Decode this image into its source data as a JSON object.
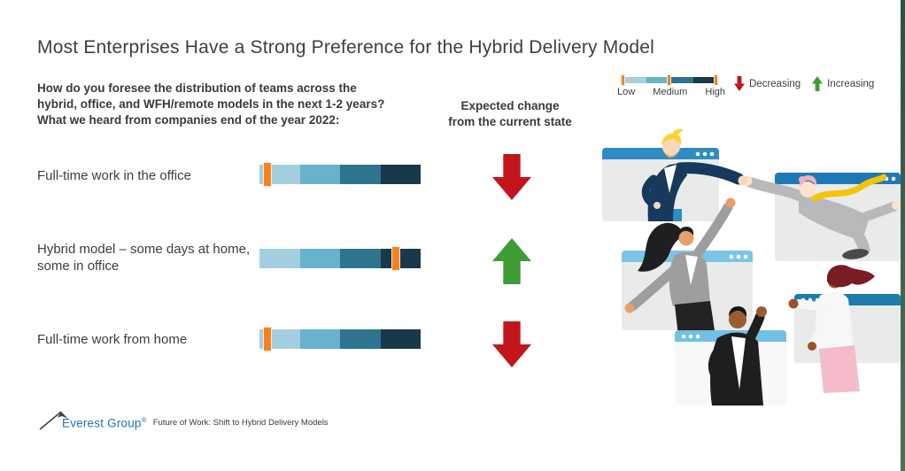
{
  "title": "Most Enterprises Have a Strong Preference for the Hybrid Delivery Model",
  "question": "How do you foresee the distribution of teams across the\nhybrid, office, and WFH/remote models in the next 1-2 years?\nWhat we heard from companies end of the year 2022:",
  "expected_change_header": "Expected change\nfrom the current state",
  "legend": {
    "scale_labels": [
      "Low",
      "Medium",
      "High"
    ],
    "decreasing_label": "Decreasing",
    "increasing_label": "Increasing"
  },
  "rows": [
    {
      "label": "Full-time work in the office",
      "marker_position_pct": 2,
      "preference_level": "Low",
      "expected_change": "Decreasing"
    },
    {
      "label": "Hybrid model – some days at home, some in office",
      "marker_position_pct": 82,
      "preference_level": "High",
      "expected_change": "Increasing"
    },
    {
      "label": "Full-time work from home",
      "marker_position_pct": 2,
      "preference_level": "Low",
      "expected_change": "Decreasing"
    }
  ],
  "footer": {
    "brand": "Everest Group",
    "registered_mark": "®",
    "caption": "Future of Work: Shift to Hybrid Delivery Models"
  },
  "colors": {
    "scale_segments": [
      "#a4cfe0",
      "#69b2ce",
      "#2f748e",
      "#17394a"
    ],
    "marker_orange": "#f5821f",
    "decreasing_red": "#c3161c",
    "increasing_green": "#3f9c35",
    "brand_blue": "#2273b2",
    "edge_strip_green": "#3f6752"
  },
  "chart_data": {
    "type": "table",
    "title": "Most Enterprises Have a Strong Preference for the Hybrid Delivery Model",
    "question": "How do you foresee the distribution of teams across the hybrid, office, and WFH/remote models in the next 1-2 years? What we heard from companies end of the year 2022:",
    "change_column_header": "Expected change from the current state",
    "scale": {
      "style": "low-to-high gradient bar with orange position marker",
      "labels": [
        "Low",
        "Medium",
        "High"
      ],
      "segments": 4
    },
    "rows": [
      {
        "category": "Full-time work in the office",
        "preference_level": "Low",
        "marker_position_pct": 2,
        "expected_change": "Decreasing"
      },
      {
        "category": "Hybrid model – some days at home, some in office",
        "preference_level": "High",
        "marker_position_pct": 82,
        "expected_change": "Increasing"
      },
      {
        "category": "Full-time work from home",
        "preference_level": "Low",
        "marker_position_pct": 2,
        "expected_change": "Decreasing"
      }
    ],
    "legend_position": "top-right",
    "source_caption": "Everest Group — Future of Work: Shift to Hybrid Delivery Models"
  }
}
